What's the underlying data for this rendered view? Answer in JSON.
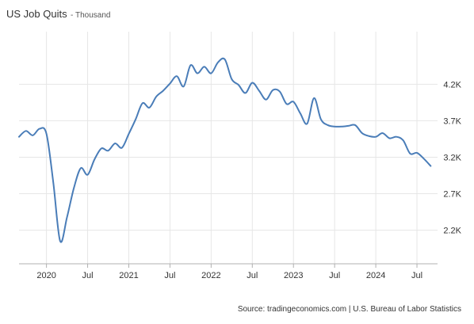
{
  "header": {
    "title": "US Job Quits",
    "subtitle": "- Thousand"
  },
  "source": "Source: tradingeconomics.com | U.S. Bureau of Labor Statistics",
  "chart_data": {
    "type": "line",
    "title": "US Job Quits",
    "unit": "Thousand",
    "xlim": [
      "2019-09",
      "2024-10"
    ],
    "ylim": [
      1740,
      4920
    ],
    "y_ticks": [
      {
        "value": 2200,
        "label": "2.2K"
      },
      {
        "value": 2700,
        "label": "2.7K"
      },
      {
        "value": 3200,
        "label": "3.2K"
      },
      {
        "value": 3700,
        "label": "3.7K"
      },
      {
        "value": 4200,
        "label": "4.2K"
      }
    ],
    "x_ticks": [
      {
        "value": "2020-01",
        "label": "2020"
      },
      {
        "value": "2020-07",
        "label": "Jul"
      },
      {
        "value": "2021-01",
        "label": "2021"
      },
      {
        "value": "2021-07",
        "label": "Jul"
      },
      {
        "value": "2022-01",
        "label": "2022"
      },
      {
        "value": "2022-07",
        "label": "Jul"
      },
      {
        "value": "2023-01",
        "label": "2023"
      },
      {
        "value": "2023-07",
        "label": "Jul"
      },
      {
        "value": "2024-01",
        "label": "2024"
      },
      {
        "value": "2024-07",
        "label": "Jul"
      }
    ],
    "grid": true,
    "legend": "none",
    "line_color": "#4a7db8",
    "series": [
      {
        "x": [
          "2019-09",
          "2019-10",
          "2019-11",
          "2019-12",
          "2020-01",
          "2020-02",
          "2020-03",
          "2020-04",
          "2020-05",
          "2020-06",
          "2020-07",
          "2020-08",
          "2020-09",
          "2020-10",
          "2020-11",
          "2020-12",
          "2021-01",
          "2021-02",
          "2021-03",
          "2021-04",
          "2021-05",
          "2021-06",
          "2021-07",
          "2021-08",
          "2021-09",
          "2021-10",
          "2021-11",
          "2021-12",
          "2022-01",
          "2022-02",
          "2022-03",
          "2022-04",
          "2022-05",
          "2022-06",
          "2022-07",
          "2022-08",
          "2022-09",
          "2022-10",
          "2022-11",
          "2022-12",
          "2023-01",
          "2023-02",
          "2023-03",
          "2023-04",
          "2023-05",
          "2023-06",
          "2023-07",
          "2023-08",
          "2023-09",
          "2023-10",
          "2023-11",
          "2023-12",
          "2024-01",
          "2024-02",
          "2024-03",
          "2024-04",
          "2024-05",
          "2024-06",
          "2024-07",
          "2024-08",
          "2024-09"
        ],
        "values": [
          3480,
          3560,
          3500,
          3590,
          3520,
          2850,
          2050,
          2380,
          2780,
          3050,
          2960,
          3170,
          3320,
          3290,
          3390,
          3330,
          3520,
          3720,
          3940,
          3880,
          4030,
          4110,
          4210,
          4310,
          4170,
          4460,
          4350,
          4440,
          4350,
          4500,
          4540,
          4270,
          4190,
          4080,
          4220,
          4110,
          3990,
          4120,
          4100,
          3930,
          3960,
          3800,
          3660,
          4010,
          3720,
          3640,
          3620,
          3620,
          3630,
          3640,
          3530,
          3490,
          3480,
          3530,
          3460,
          3480,
          3430,
          3250,
          3260,
          3180,
          3080
        ]
      }
    ]
  }
}
